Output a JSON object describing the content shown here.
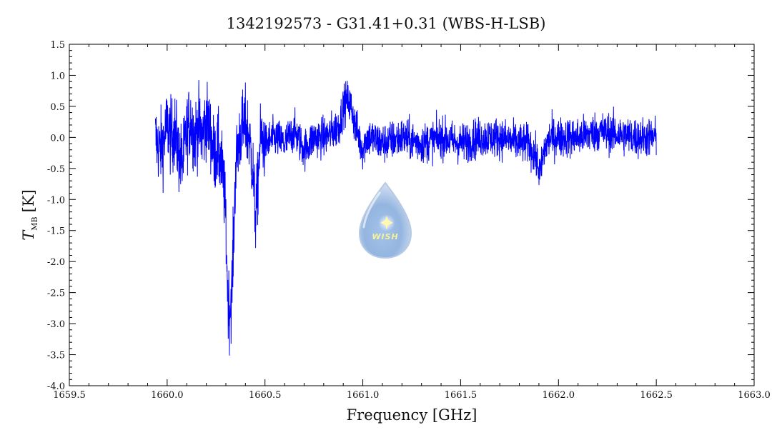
{
  "chart_data": {
    "type": "line",
    "title": "1342192573 - G31.41+0.31 (WBS-H-LSB)",
    "xlabel": "Frequency [GHz]",
    "ylabel_main": "T",
    "ylabel_sub": "MB",
    "ylabel_unit": "[K]",
    "xlim": [
      1659.5,
      1663.0
    ],
    "ylim": [
      -4.0,
      1.5
    ],
    "xticks": [
      1659.5,
      1660.0,
      1660.5,
      1661.0,
      1661.5,
      1662.0,
      1662.5,
      1663.0
    ],
    "xtick_labels": [
      "1659.5",
      "1660.0",
      "1660.5",
      "1661.0",
      "1661.5",
      "1662.0",
      "1662.5",
      "1663.0"
    ],
    "yticks": [
      1.5,
      1.0,
      0.5,
      0.0,
      -0.5,
      -1.0,
      -1.5,
      -2.0,
      -2.5,
      -3.0,
      -3.5,
      -4.0
    ],
    "ytick_labels": [
      "1.5",
      "1.0",
      "0.5",
      "0.0",
      "-0.5",
      "-1.0",
      "-1.5",
      "-2.0",
      "-2.5",
      "-3.0",
      "-3.5",
      "-4.0"
    ],
    "grid": false,
    "series": [
      {
        "color": "#0000ff",
        "x": [
          1659.94,
          1659.96,
          1659.98,
          1660.0,
          1660.02,
          1660.04,
          1660.06,
          1660.08,
          1660.1,
          1660.12,
          1660.14,
          1660.16,
          1660.18,
          1660.2,
          1660.22,
          1660.24,
          1660.26,
          1660.28,
          1660.29,
          1660.3,
          1660.31,
          1660.32,
          1660.33,
          1660.34,
          1660.35,
          1660.36,
          1660.37,
          1660.38,
          1660.4,
          1660.42,
          1660.44,
          1660.45,
          1660.46,
          1660.47,
          1660.48,
          1660.5,
          1660.55,
          1660.6,
          1660.65,
          1660.7,
          1660.75,
          1660.8,
          1660.85,
          1660.88,
          1660.9,
          1660.92,
          1660.94,
          1660.96,
          1660.98,
          1661.0,
          1661.02,
          1661.04,
          1661.1,
          1661.2,
          1661.3,
          1661.4,
          1661.5,
          1661.6,
          1661.7,
          1661.8,
          1661.85,
          1661.88,
          1661.9,
          1661.91,
          1661.92,
          1661.94,
          1661.96,
          1662.0,
          1662.1,
          1662.2,
          1662.3,
          1662.4,
          1662.5
        ],
        "y": [
          0.0,
          -0.2,
          -0.1,
          0.2,
          0.0,
          0.1,
          -0.3,
          -0.4,
          0.1,
          0.3,
          0.0,
          0.2,
          0.0,
          0.3,
          0.1,
          -0.3,
          -0.2,
          -0.5,
          -0.8,
          -1.4,
          -2.6,
          -2.8,
          -2.5,
          -1.6,
          -0.5,
          -0.2,
          0.0,
          0.1,
          0.2,
          0.0,
          -0.6,
          -1.3,
          -1.0,
          -0.3,
          0.0,
          -0.1,
          0.0,
          -0.1,
          0.1,
          -0.2,
          0.0,
          0.0,
          0.1,
          0.2,
          0.5,
          0.6,
          0.5,
          0.2,
          0.0,
          -0.2,
          0.0,
          0.0,
          -0.1,
          0.0,
          -0.1,
          0.0,
          -0.1,
          0.0,
          0.0,
          -0.1,
          -0.1,
          -0.3,
          -0.5,
          -0.6,
          -0.3,
          -0.1,
          0.0,
          0.0,
          0.0,
          0.1,
          0.05,
          0.0,
          0.0
        ]
      }
    ]
  },
  "watermark": {
    "text": "WISH"
  }
}
